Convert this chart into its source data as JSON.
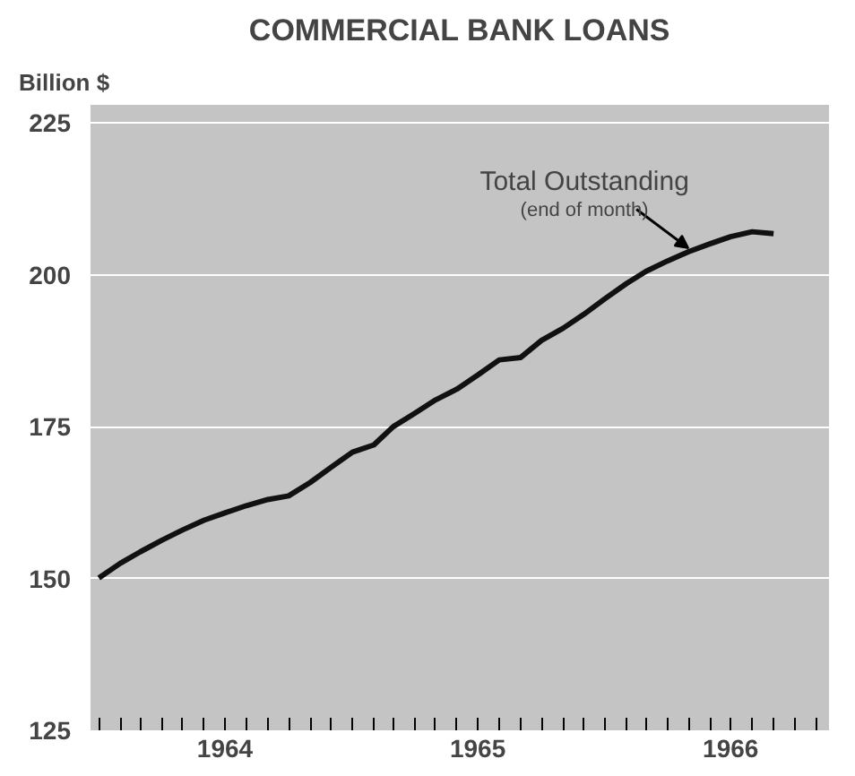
{
  "chart_data": {
    "type": "line",
    "title": "COMMERCIAL BANK LOANS",
    "ylabel": "Billion $",
    "x": [
      "1964-01",
      "1964-02",
      "1964-03",
      "1964-04",
      "1964-05",
      "1964-06",
      "1964-07",
      "1964-08",
      "1964-09",
      "1964-10",
      "1964-11",
      "1964-12",
      "1965-01",
      "1965-02",
      "1965-03",
      "1965-04",
      "1965-05",
      "1965-06",
      "1965-07",
      "1965-08",
      "1965-09",
      "1965-10",
      "1965-11",
      "1965-12",
      "1966-01",
      "1966-02",
      "1966-03",
      "1966-04",
      "1966-05",
      "1966-06",
      "1966-07",
      "1966-08",
      "1966-09"
    ],
    "series": [
      {
        "color": "#111111",
        "values": [
          150.1,
          152.5,
          154.4,
          156.3,
          158.0,
          159.6,
          160.8,
          162.0,
          163.0,
          163.6,
          165.8,
          168.3,
          170.8,
          172.0,
          175.0,
          177.2,
          179.4,
          181.2,
          183.5,
          186.0,
          186.4,
          189.2,
          191.2,
          193.5,
          196.1,
          198.6,
          200.6,
          202.3,
          203.8,
          205.1,
          206.3,
          207.1,
          206.8
        ]
      }
    ],
    "xlim": [
      "1963-12-20",
      "1966-11-20"
    ],
    "xticks": [
      {
        "value": "1964-01",
        "label": null
      },
      {
        "value": "1964-02",
        "label": null
      },
      {
        "value": "1964-03",
        "label": null
      },
      {
        "value": "1964-04",
        "label": null
      },
      {
        "value": "1964-05",
        "label": null
      },
      {
        "value": "1964-06",
        "label": null
      },
      {
        "value": "1964-07",
        "label": "1964"
      },
      {
        "value": "1964-08",
        "label": null
      },
      {
        "value": "1964-09",
        "label": null
      },
      {
        "value": "1964-10",
        "label": null
      },
      {
        "value": "1964-11",
        "label": null
      },
      {
        "value": "1964-12",
        "label": null
      },
      {
        "value": "1965-01",
        "label": null
      },
      {
        "value": "1965-02",
        "label": null
      },
      {
        "value": "1965-03",
        "label": null
      },
      {
        "value": "1965-04",
        "label": null
      },
      {
        "value": "1965-05",
        "label": null
      },
      {
        "value": "1965-06",
        "label": null
      },
      {
        "value": "1965-07",
        "label": "1965"
      },
      {
        "value": "1965-08",
        "label": null
      },
      {
        "value": "1965-09",
        "label": null
      },
      {
        "value": "1965-10",
        "label": null
      },
      {
        "value": "1965-11",
        "label": null
      },
      {
        "value": "1965-12",
        "label": null
      },
      {
        "value": "1966-01",
        "label": null
      },
      {
        "value": "1966-02",
        "label": null
      },
      {
        "value": "1966-03",
        "label": null
      },
      {
        "value": "1966-04",
        "label": null
      },
      {
        "value": "1966-05",
        "label": null
      },
      {
        "value": "1966-06",
        "label": null
      },
      {
        "value": "1966-07",
        "label": "1966"
      },
      {
        "value": "1966-08",
        "label": null
      },
      {
        "value": "1966-09",
        "label": null
      },
      {
        "value": "1966-10",
        "label": null
      },
      {
        "value": "1966-11",
        "label": null
      }
    ],
    "ylim": [
      125,
      228
    ],
    "yticks": [
      125,
      150,
      175,
      200,
      225
    ],
    "grid": "y",
    "annotations": [
      {
        "text": "Total Outstanding",
        "x": "1966-05",
        "y": 203.8
      },
      "(end of month)"
    ]
  }
}
